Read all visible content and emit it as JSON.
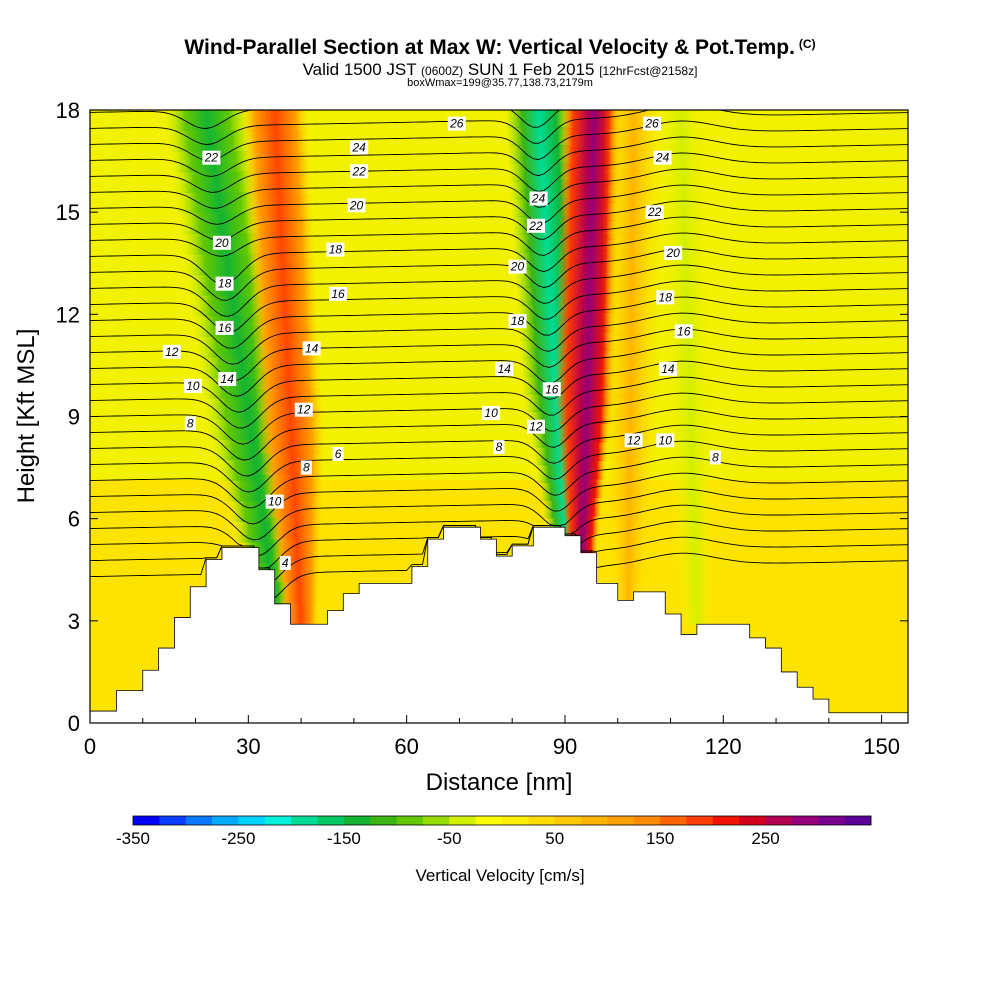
{
  "header": {
    "title": "Wind-Parallel Section at Max W: Vertical Velocity & Pot.Temp.",
    "title_tag": "(C)",
    "valid_prefix": "Valid 1500 JST",
    "valid_utc": "(0600Z)",
    "valid_date": "SUN 1 Feb 2015",
    "valid_fcst": "[12hrFcst@2158z]",
    "box_info": "boxWmax=199@35.77,138.73,2179m"
  },
  "chart_data": {
    "type": "contour",
    "xlabel": "Distance [nm]",
    "ylabel": "Height [Kft MSL]",
    "xlim": [
      0,
      155
    ],
    "ylim": [
      0,
      18
    ],
    "x_ticks": [
      0,
      30,
      60,
      90,
      120,
      150
    ],
    "y_ticks": [
      0,
      3,
      6,
      9,
      12,
      15,
      18
    ],
    "colorbar": {
      "title": "Vertical Velocity [cm/s]",
      "min": -350,
      "max": 350,
      "labels": [
        "-350",
        "-250",
        "-150",
        "-50",
        "50",
        "150",
        "250"
      ],
      "colors": [
        "#0000ff",
        "#0a3cff",
        "#0a78ff",
        "#00aaff",
        "#00d2ff",
        "#00f0dc",
        "#00dc96",
        "#00c864",
        "#14b432",
        "#3cb414",
        "#64c800",
        "#96dc00",
        "#d2f000",
        "#ffff00",
        "#fff000",
        "#ffdc00",
        "#ffc800",
        "#ffb400",
        "#ffa000",
        "#ff8c00",
        "#ff6400",
        "#ff3c00",
        "#f01400",
        "#d2001e",
        "#b40050",
        "#960078",
        "#78008c",
        "#5a0096"
      ]
    },
    "terrain_profile_kft": [
      [
        0,
        0.35
      ],
      [
        5,
        0.35
      ],
      [
        5,
        0.95
      ],
      [
        10,
        0.95
      ],
      [
        10,
        1.55
      ],
      [
        13,
        1.55
      ],
      [
        13,
        2.2
      ],
      [
        16,
        2.2
      ],
      [
        16,
        3.1
      ],
      [
        19,
        3.1
      ],
      [
        19,
        4.0
      ],
      [
        22,
        4.0
      ],
      [
        22,
        4.8
      ],
      [
        25,
        4.8
      ],
      [
        25,
        5.15
      ],
      [
        32,
        5.15
      ],
      [
        32,
        4.5
      ],
      [
        35,
        4.5
      ],
      [
        35,
        3.5
      ],
      [
        38,
        3.5
      ],
      [
        38,
        2.9
      ],
      [
        45,
        2.9
      ],
      [
        45,
        3.3
      ],
      [
        48,
        3.3
      ],
      [
        48,
        3.8
      ],
      [
        51,
        3.8
      ],
      [
        51,
        4.1
      ],
      [
        61,
        4.1
      ],
      [
        61,
        4.6
      ],
      [
        64,
        4.6
      ],
      [
        64,
        5.4
      ],
      [
        67,
        5.4
      ],
      [
        67,
        5.75
      ],
      [
        74,
        5.75
      ],
      [
        74,
        5.4
      ],
      [
        77,
        5.4
      ],
      [
        77,
        4.9
      ],
      [
        80,
        4.9
      ],
      [
        80,
        5.2
      ],
      [
        84,
        5.2
      ],
      [
        84,
        5.75
      ],
      [
        90,
        5.75
      ],
      [
        90,
        5.5
      ],
      [
        93,
        5.5
      ],
      [
        93,
        5.0
      ],
      [
        96,
        5.0
      ],
      [
        96,
        4.1
      ],
      [
        100,
        4.1
      ],
      [
        100,
        3.6
      ],
      [
        103,
        3.6
      ],
      [
        103,
        3.85
      ],
      [
        109,
        3.85
      ],
      [
        109,
        3.2
      ],
      [
        112,
        3.2
      ],
      [
        112,
        2.6
      ],
      [
        115,
        2.6
      ],
      [
        115,
        2.9
      ],
      [
        125,
        2.9
      ],
      [
        125,
        2.5
      ],
      [
        128,
        2.5
      ],
      [
        128,
        2.2
      ],
      [
        131,
        2.2
      ],
      [
        131,
        1.5
      ],
      [
        134,
        1.5
      ],
      [
        134,
        1.05
      ],
      [
        137,
        1.05
      ],
      [
        137,
        0.7
      ],
      [
        140,
        0.7
      ],
      [
        140,
        0.3
      ],
      [
        155,
        0.3
      ]
    ],
    "vertical_velocity_features_cm_s": [
      {
        "name": "downdraft-west-1",
        "value": -150,
        "x_bottom": 35,
        "x_top": 22
      },
      {
        "name": "updraft-west",
        "value": 150,
        "x_bottom": 40,
        "x_top": 35
      },
      {
        "name": "downdraft-central",
        "value": -250,
        "x_bottom": 90,
        "x_top": 85
      },
      {
        "name": "updraft-central",
        "value": 250,
        "x_bottom": 93,
        "x_top": 95
      },
      {
        "name": "updraft-east-weak",
        "value": 100,
        "x_bottom": 102,
        "x_top": 103
      },
      {
        "name": "downdraft-east-weak",
        "value": -50,
        "x_bottom": 115,
        "x_top": 112
      }
    ],
    "theta_contour_labels": [
      {
        "text": "22",
        "x": 23,
        "y": 16.6
      },
      {
        "text": "20",
        "x": 25,
        "y": 14.1
      },
      {
        "text": "18",
        "x": 25.5,
        "y": 12.9
      },
      {
        "text": "16",
        "x": 25.5,
        "y": 11.6
      },
      {
        "text": "14",
        "x": 26,
        "y": 10.1
      },
      {
        "text": "12",
        "x": 15.5,
        "y": 10.9
      },
      {
        "text": "10",
        "x": 19.5,
        "y": 9.9
      },
      {
        "text": "8",
        "x": 19,
        "y": 8.8
      },
      {
        "text": "10",
        "x": 35,
        "y": 6.5
      },
      {
        "text": "4",
        "x": 37,
        "y": 4.7
      },
      {
        "text": "8",
        "x": 41,
        "y": 7.5
      },
      {
        "text": "6",
        "x": 47,
        "y": 7.9
      },
      {
        "text": "12",
        "x": 40.5,
        "y": 9.2
      },
      {
        "text": "14",
        "x": 42,
        "y": 11.0
      },
      {
        "text": "16",
        "x": 47,
        "y": 12.6
      },
      {
        "text": "18",
        "x": 46.5,
        "y": 13.9
      },
      {
        "text": "20",
        "x": 50.5,
        "y": 15.2
      },
      {
        "text": "22",
        "x": 51,
        "y": 16.2
      },
      {
        "text": "24",
        "x": 51,
        "y": 16.9
      },
      {
        "text": "26",
        "x": 69.5,
        "y": 17.6
      },
      {
        "text": "24",
        "x": 85,
        "y": 15.4
      },
      {
        "text": "22",
        "x": 84.5,
        "y": 14.6
      },
      {
        "text": "20",
        "x": 81,
        "y": 13.4
      },
      {
        "text": "18",
        "x": 81,
        "y": 11.8
      },
      {
        "text": "14",
        "x": 78.5,
        "y": 10.4
      },
      {
        "text": "16",
        "x": 87.5,
        "y": 9.8
      },
      {
        "text": "10",
        "x": 76,
        "y": 9.1
      },
      {
        "text": "12",
        "x": 84.5,
        "y": 8.7
      },
      {
        "text": "8",
        "x": 77.5,
        "y": 8.1
      },
      {
        "text": "26",
        "x": 106.5,
        "y": 17.6
      },
      {
        "text": "24",
        "x": 108.5,
        "y": 16.6
      },
      {
        "text": "22",
        "x": 107,
        "y": 15.0
      },
      {
        "text": "20",
        "x": 110.5,
        "y": 13.8
      },
      {
        "text": "18",
        "x": 109,
        "y": 12.5
      },
      {
        "text": "16",
        "x": 112.5,
        "y": 11.5
      },
      {
        "text": "14",
        "x": 109.5,
        "y": 10.4
      },
      {
        "text": "12",
        "x": 103,
        "y": 8.3
      },
      {
        "text": "10",
        "x": 109,
        "y": 8.3
      },
      {
        "text": "8",
        "x": 118.5,
        "y": 7.8
      }
    ]
  }
}
